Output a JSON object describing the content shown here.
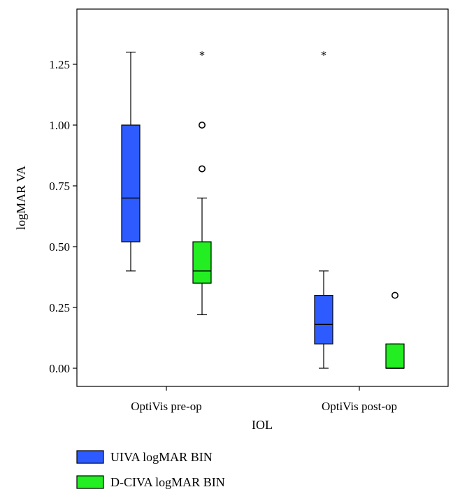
{
  "chart_data": {
    "type": "boxplot",
    "xlabel": "IOL",
    "ylabel": "logMAR VA",
    "ylim": [
      -0.075,
      1.475
    ],
    "yticks": [
      0.0,
      0.25,
      0.5,
      0.75,
      1.0,
      1.25
    ],
    "ytick_labels": [
      "0.00",
      "0.25",
      "0.50",
      "0.75",
      "1.00",
      "1.25"
    ],
    "categories": [
      "OptiVis pre-op",
      "OptiVis post-op"
    ],
    "grid": false,
    "legend_position": "bottom-left",
    "series": [
      {
        "name": "UIVA logMAR BIN",
        "color": "#2d5bff",
        "boxes": [
          {
            "whisker_low": 0.4,
            "q1": 0.52,
            "median": 0.7,
            "q3": 1.0,
            "whisker_high": 1.3,
            "outliers": [],
            "extremes": []
          },
          {
            "whisker_low": 0.0,
            "q1": 0.1,
            "median": 0.18,
            "q3": 0.3,
            "whisker_high": 0.4,
            "outliers": [],
            "extremes": [
              1.3
            ]
          }
        ]
      },
      {
        "name": "D-CIVA logMAR BIN",
        "color": "#22ee22",
        "boxes": [
          {
            "whisker_low": 0.22,
            "q1": 0.35,
            "median": 0.4,
            "q3": 0.52,
            "whisker_high": 0.7,
            "outliers": [
              0.82,
              1.0
            ],
            "extremes": [
              1.3
            ]
          },
          {
            "whisker_low": 0.0,
            "q1": 0.0,
            "median": 0.0,
            "q3": 0.1,
            "whisker_high": 0.1,
            "outliers": [
              0.3
            ],
            "extremes": []
          }
        ]
      }
    ]
  }
}
